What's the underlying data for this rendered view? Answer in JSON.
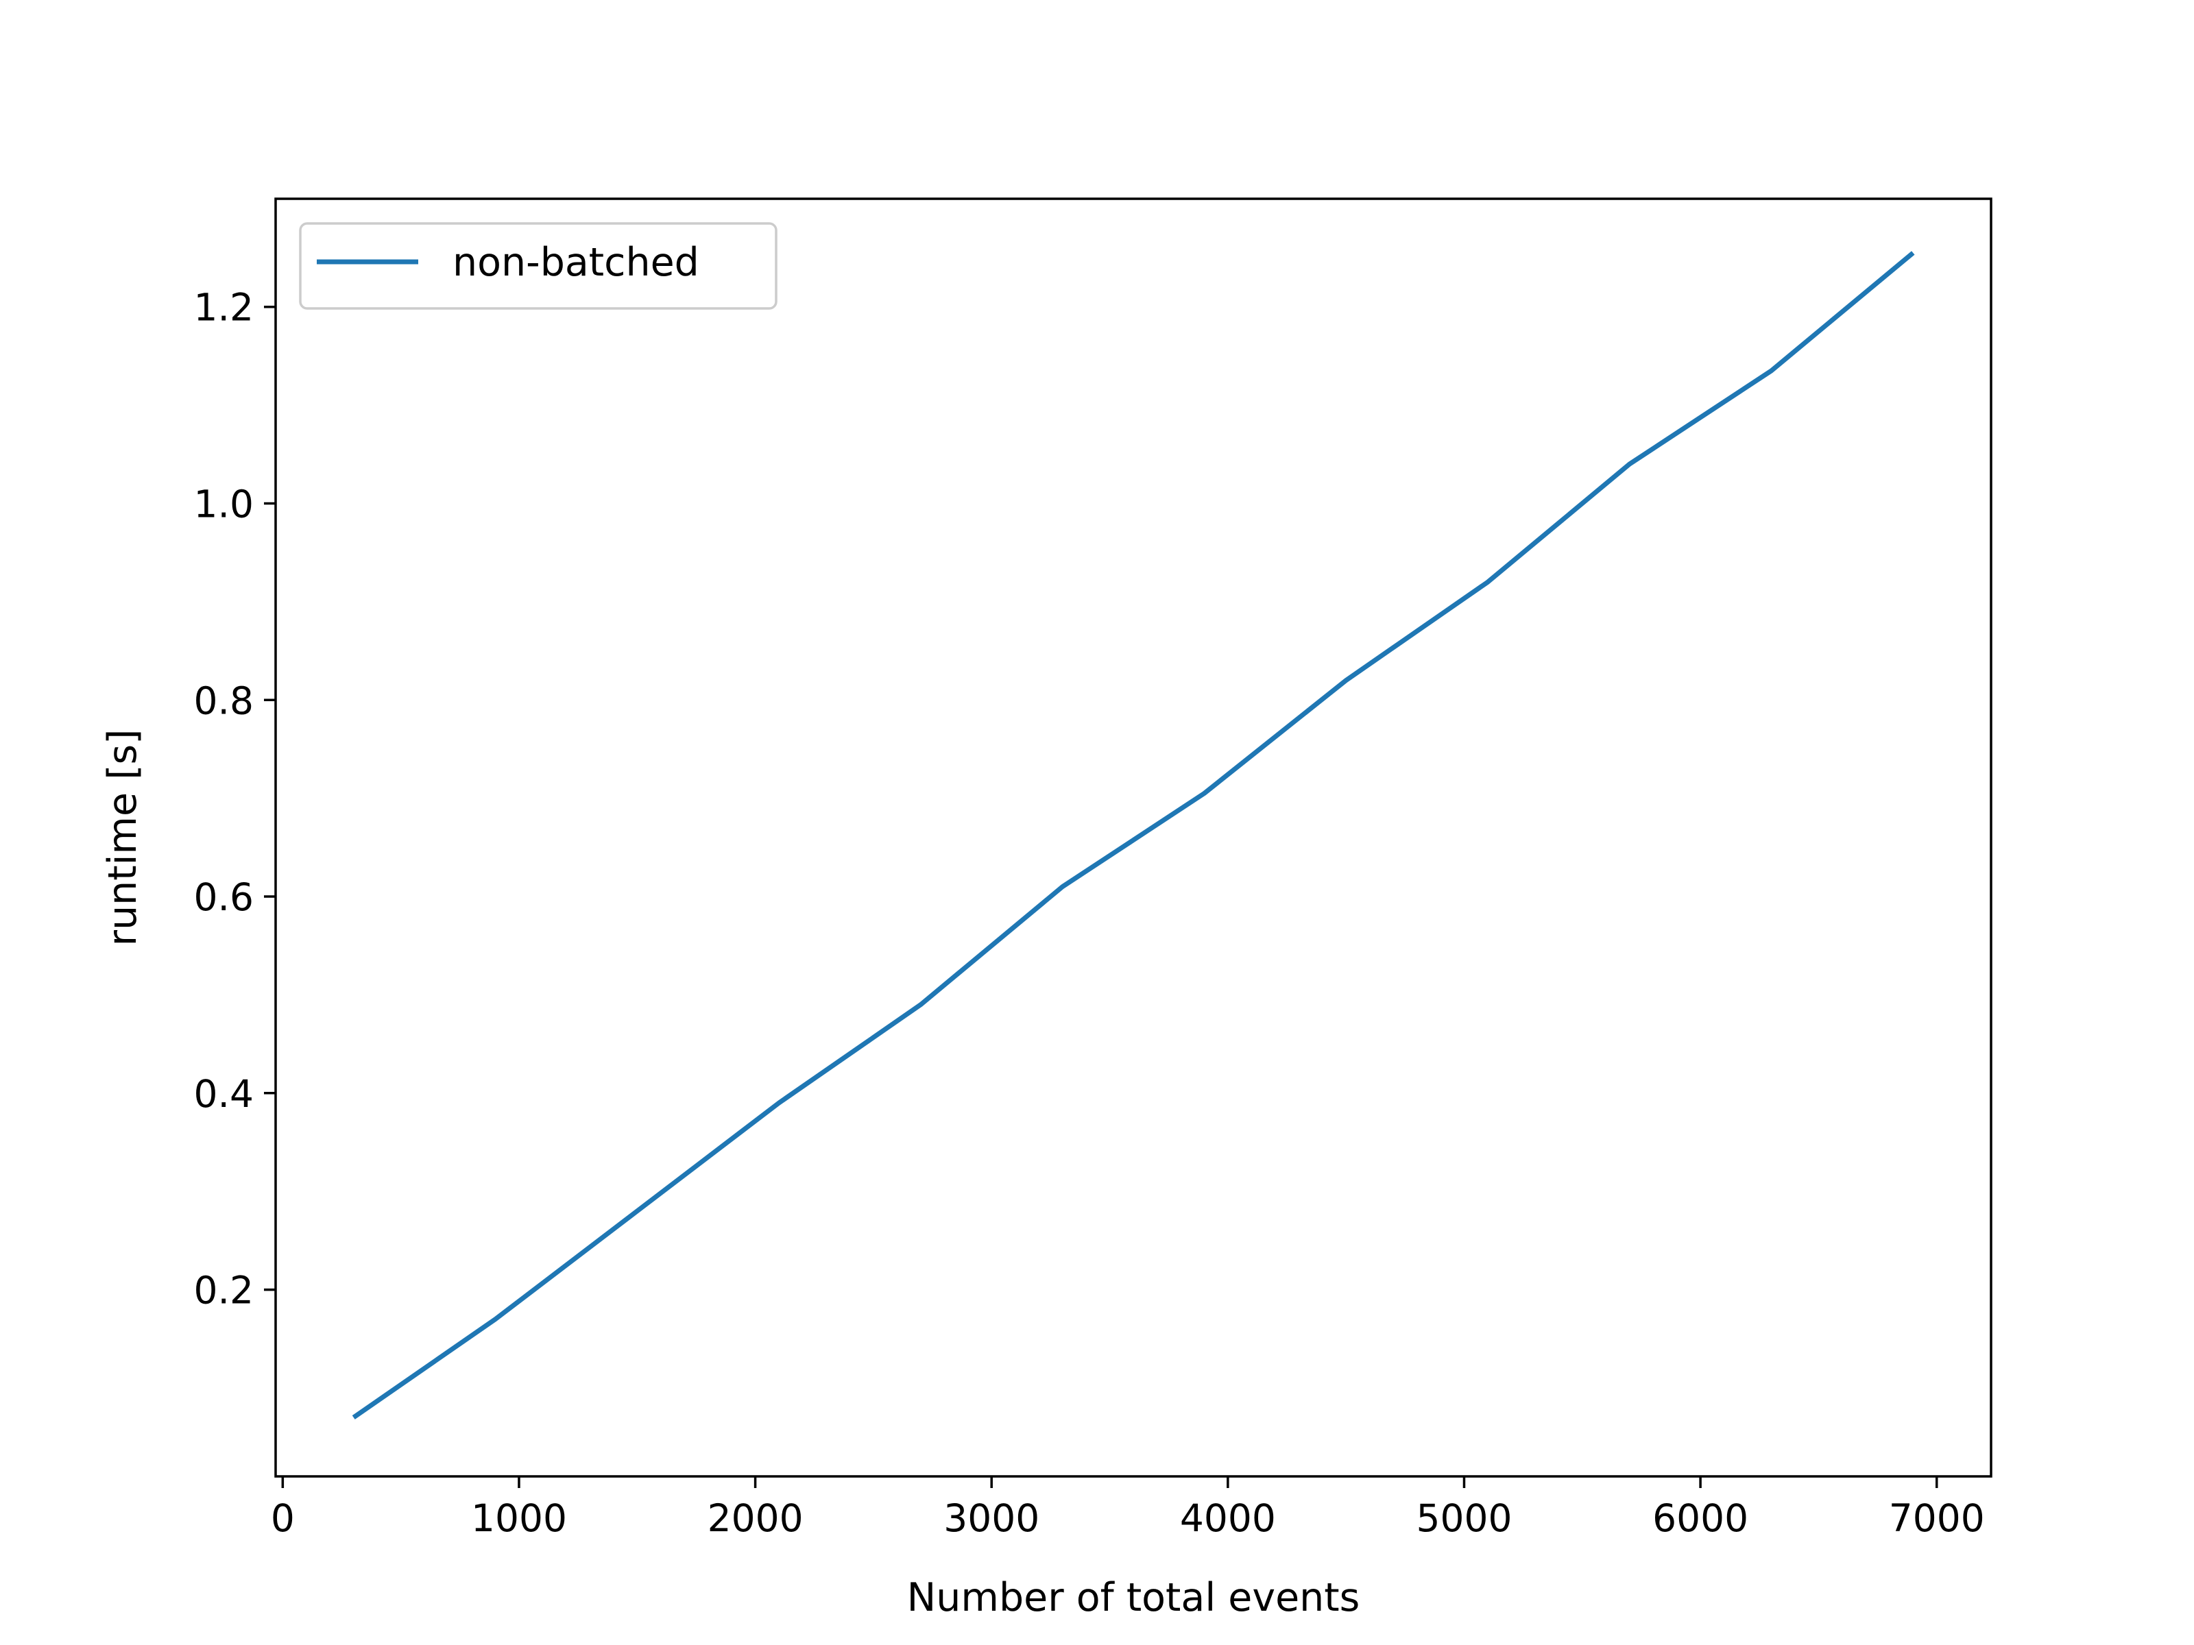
{
  "chart_data": {
    "type": "line",
    "title": "",
    "xlabel": "Number of total events",
    "ylabel": "runtime [s]",
    "xlim": [
      -30,
      7230
    ],
    "ylim": [
      0.01,
      1.31
    ],
    "xticks": [
      0,
      1000,
      2000,
      3000,
      4000,
      5000,
      6000,
      7000
    ],
    "xtick_labels": [
      "0",
      "1000",
      "2000",
      "3000",
      "4000",
      "5000",
      "6000",
      "7000"
    ],
    "yticks": [
      0.2,
      0.4,
      0.6,
      0.8,
      1.0,
      1.2
    ],
    "ytick_labels": [
      "0.2",
      "0.4",
      "0.6",
      "0.8",
      "1.0",
      "1.2"
    ],
    "grid": false,
    "legend": {
      "position": "top-left",
      "entries": [
        "non-batched"
      ]
    },
    "series": [
      {
        "name": "non-batched",
        "color": "#1f77b4",
        "x": [
          300,
          900,
          1500,
          2100,
          2700,
          3300,
          3900,
          4500,
          5100,
          5700,
          6300,
          6900
        ],
        "y": [
          0.07,
          0.17,
          0.28,
          0.39,
          0.49,
          0.61,
          0.705,
          0.82,
          0.92,
          1.04,
          1.135,
          1.255
        ]
      }
    ]
  }
}
